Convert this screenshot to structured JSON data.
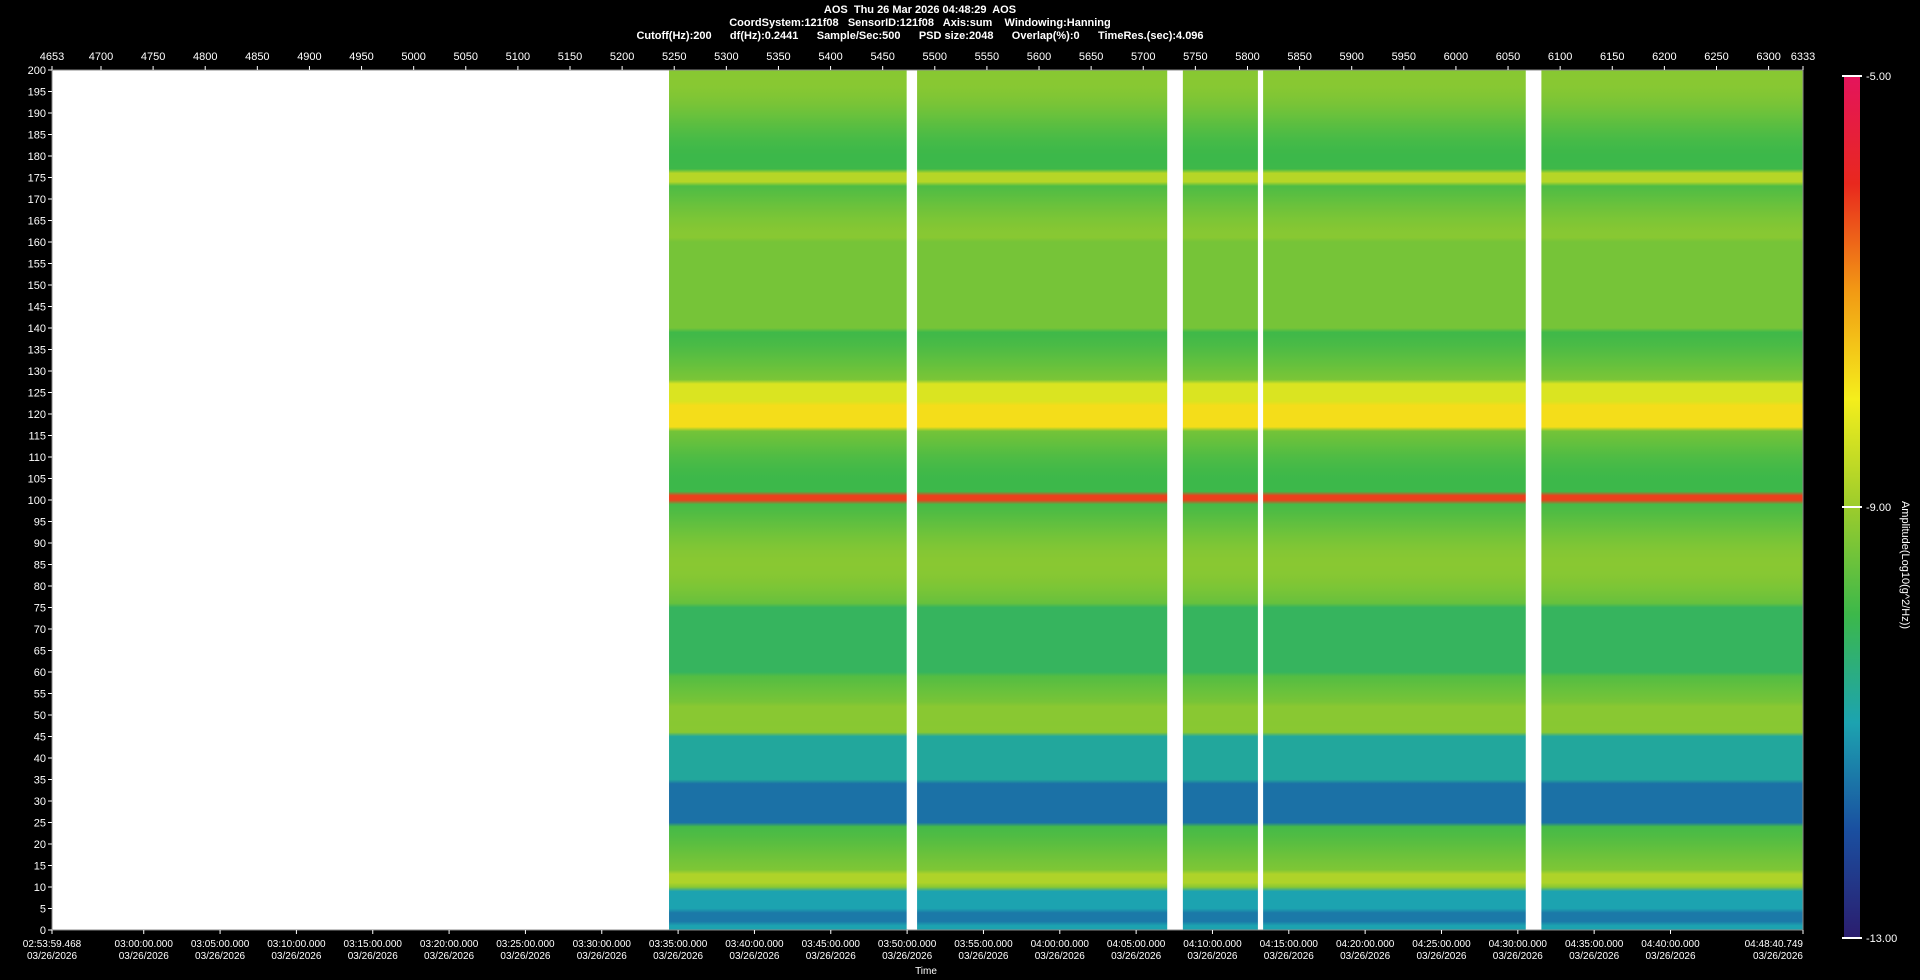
{
  "header": {
    "line1": "AOS  Thu 26 Mar 2026 04:48:29  AOS",
    "line2": "CoordSystem:121f08   SensorID:121f08   Axis:sum    Windowing:Hanning",
    "line3": "Cutoff(Hz):200      df(Hz):0.2441      Sample/Sec:500      PSD size:2048      Overlap(%):0      TimeRes.(sec):4.096"
  },
  "chart_data": {
    "type": "heatmap",
    "title": "AOS  Thu 26 Mar 2026 04:48:29  AOS",
    "ylabel": "",
    "xlabel": "Time",
    "ylim": [
      0,
      200
    ],
    "y_ticks": [
      0,
      5,
      10,
      15,
      20,
      25,
      30,
      35,
      40,
      45,
      50,
      55,
      60,
      65,
      70,
      75,
      80,
      85,
      90,
      95,
      100,
      105,
      110,
      115,
      120,
      125,
      130,
      135,
      140,
      145,
      150,
      155,
      160,
      165,
      170,
      175,
      180,
      185,
      190,
      195,
      200
    ],
    "top_axis": {
      "range": [
        4653,
        6333
      ],
      "ticks": [
        "4653",
        "4700",
        "4750",
        "4800",
        "4850",
        "4900",
        "4950",
        "5000",
        "5050",
        "5100",
        "5150",
        "5200",
        "5250",
        "5300",
        "5350",
        "5400",
        "5450",
        "5500",
        "5550",
        "5600",
        "5650",
        "5700",
        "5750",
        "5800",
        "5850",
        "5900",
        "5950",
        "6000",
        "6050",
        "6100",
        "6150",
        "6200",
        "6250",
        "6300",
        "6333"
      ]
    },
    "time_axis": {
      "start": "02:53:59.468",
      "end": "04:48:40.749",
      "ticks": [
        {
          "time": "02:53:59.468",
          "date": "03/26/2026"
        },
        {
          "time": "03:00:00.000",
          "date": "03/26/2026"
        },
        {
          "time": "03:05:00.000",
          "date": "03/26/2026"
        },
        {
          "time": "03:10:00.000",
          "date": "03/26/2026"
        },
        {
          "time": "03:15:00.000",
          "date": "03/26/2026"
        },
        {
          "time": "03:20:00.000",
          "date": "03/26/2026"
        },
        {
          "time": "03:25:00.000",
          "date": "03/26/2026"
        },
        {
          "time": "03:30:00.000",
          "date": "03/26/2026"
        },
        {
          "time": "03:35:00.000",
          "date": "03/26/2026"
        },
        {
          "time": "03:40:00.000",
          "date": "03/26/2026"
        },
        {
          "time": "03:45:00.000",
          "date": "03/26/2026"
        },
        {
          "time": "03:50:00.000",
          "date": "03/26/2026"
        },
        {
          "time": "03:55:00.000",
          "date": "03/26/2026"
        },
        {
          "time": "04:00:00.000",
          "date": "03/26/2026"
        },
        {
          "time": "04:05:00.000",
          "date": "03/26/2026"
        },
        {
          "time": "04:10:00.000",
          "date": "03/26/2026"
        },
        {
          "time": "04:15:00.000",
          "date": "03/26/2026"
        },
        {
          "time": "04:20:00.000",
          "date": "03/26/2026"
        },
        {
          "time": "04:25:00.000",
          "date": "03/26/2026"
        },
        {
          "time": "04:30:00.000",
          "date": "03/26/2026"
        },
        {
          "time": "04:35:00.000",
          "date": "03/26/2026"
        },
        {
          "time": "04:40:00.000",
          "date": "03/26/2026"
        },
        {
          "time": "04:48:40.749",
          "date": "03/26/2026"
        }
      ]
    },
    "data_segments_top_axis": [
      [
        5245,
        5473
      ],
      [
        5483,
        5723
      ],
      [
        5738,
        5810
      ],
      [
        5815,
        6067
      ],
      [
        6082,
        6333
      ]
    ],
    "colorbar": {
      "label": "Amplitude(Log10(g^2/Hz))",
      "min": -13.0,
      "max": -5.0,
      "tick_labels": [
        "-5.00",
        "-9.00",
        "-13.00"
      ],
      "colors": [
        "#2b1d6e",
        "#1a4fa0",
        "#1ca3b0",
        "#3cb84a",
        "#9ccc2c",
        "#f4ee1c",
        "#f29a14",
        "#e8281e",
        "#e4145c"
      ]
    },
    "bands": [
      {
        "freq_range": [
          2,
          4
        ],
        "level": -11.5
      },
      {
        "freq_range": [
          11,
          13
        ],
        "level": -8.8
      },
      {
        "freq_range": [
          25,
          35
        ],
        "level": -11.6
      },
      {
        "freq_range": [
          35,
          45
        ],
        "level": -10.8
      },
      {
        "freq_range": [
          49,
          52
        ],
        "level": -9.2
      },
      {
        "freq_range": [
          60,
          75
        ],
        "level": -10.2
      },
      {
        "freq_range": [
          100,
          101
        ],
        "level": -6.2
      },
      {
        "freq_range": [
          117,
          122
        ],
        "level": -7.8
      },
      {
        "freq_range": [
          123,
          127
        ],
        "level": -8.3
      },
      {
        "freq_range": [
          140,
          160
        ],
        "level": -9.4
      },
      {
        "freq_range": [
          174,
          176
        ],
        "level": -8.7
      }
    ]
  }
}
